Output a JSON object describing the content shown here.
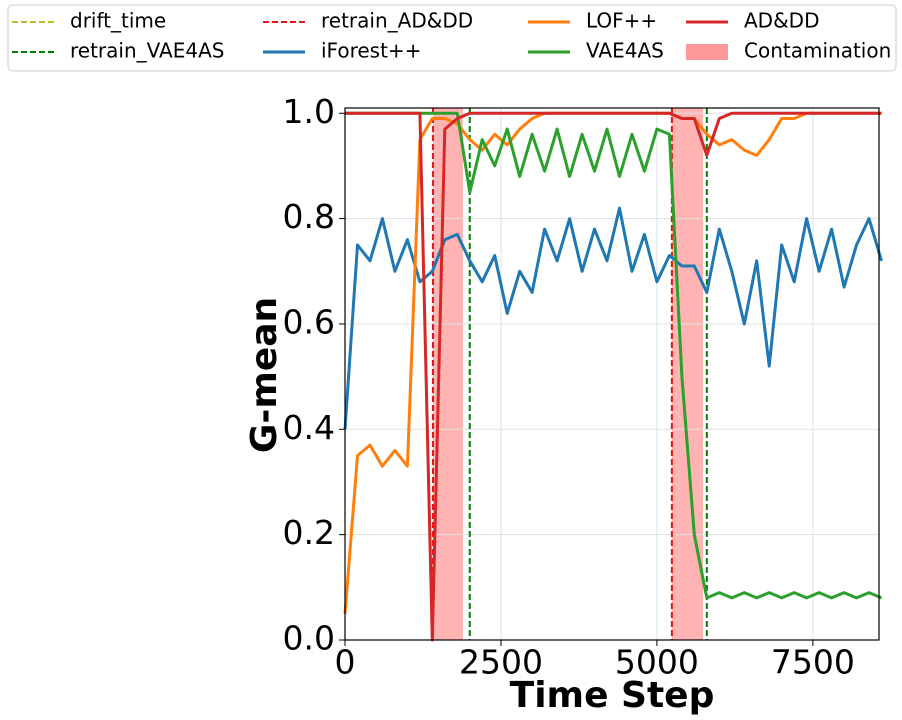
{
  "chart_data": {
    "type": "line",
    "xlabel": "Time Step",
    "ylabel": "G-mean",
    "xlim": [
      0,
      8560
    ],
    "ylim": [
      0,
      1.01
    ],
    "xticks": [
      0,
      2500,
      5000,
      7500
    ],
    "yticks": [
      {
        "value": 0,
        "label": "0.0"
      },
      0.2,
      0.4,
      0.6,
      0.8,
      {
        "value": 1,
        "label": "1.0"
      }
    ],
    "grid": true,
    "x": [
      0,
      200,
      400,
      600,
      800,
      1000,
      1200,
      1400,
      1600,
      1800,
      2000,
      2200,
      2400,
      2600,
      2800,
      3000,
      3200,
      3400,
      3600,
      3800,
      4000,
      4200,
      4400,
      4600,
      4800,
      5000,
      5200,
      5400,
      5600,
      5800,
      6000,
      6200,
      6400,
      6600,
      6800,
      7000,
      7200,
      7400,
      7600,
      7800,
      8000,
      8200,
      8400,
      8600
    ],
    "vlines": [
      {
        "name": "drift_time",
        "color": "#bcbd22",
        "x": [
          1410,
          5240
        ]
      },
      {
        "name": "retrain_VAE4AS",
        "color": "#008000",
        "x": [
          2000,
          5800
        ]
      },
      {
        "name": "retrain_AD&DD",
        "color": "#e8141c",
        "x": [
          1410,
          5240
        ]
      }
    ],
    "series": [
      {
        "name": "iForest++",
        "color": "#1f77b4",
        "values": [
          0.4,
          0.75,
          0.72,
          0.8,
          0.7,
          0.76,
          0.68,
          0.7,
          0.76,
          0.77,
          0.72,
          0.68,
          0.73,
          0.62,
          0.7,
          0.66,
          0.78,
          0.72,
          0.8,
          0.7,
          0.78,
          0.72,
          0.82,
          0.7,
          0.77,
          0.68,
          0.73,
          0.71,
          0.71,
          0.66,
          0.78,
          0.7,
          0.6,
          0.72,
          0.52,
          0.75,
          0.68,
          0.8,
          0.7,
          0.78,
          0.67,
          0.75,
          0.8,
          0.72
        ]
      },
      {
        "name": "LOF++",
        "color": "#ff7f0e",
        "values": [
          0.05,
          0.35,
          0.37,
          0.33,
          0.36,
          0.33,
          0.95,
          0.99,
          0.99,
          0.98,
          0.95,
          0.93,
          0.96,
          0.94,
          0.97,
          0.99,
          1.0,
          1.0,
          1.0,
          1.0,
          1.0,
          1.0,
          1.0,
          1.0,
          1.0,
          1.0,
          1.0,
          0.99,
          0.99,
          0.96,
          0.94,
          0.95,
          0.93,
          0.92,
          0.95,
          0.99,
          0.99,
          1.0,
          1.0,
          1.0,
          1.0,
          1.0,
          1.0,
          1.0
        ]
      },
      {
        "name": "VAE4AS",
        "color": "#2ca02c",
        "values": [
          1.0,
          1.0,
          1.0,
          1.0,
          1.0,
          1.0,
          1.0,
          1.0,
          1.0,
          1.0,
          0.85,
          0.95,
          0.9,
          0.97,
          0.88,
          0.96,
          0.89,
          0.97,
          0.88,
          0.96,
          0.89,
          0.97,
          0.88,
          0.96,
          0.89,
          0.97,
          0.96,
          0.5,
          0.2,
          0.08,
          0.09,
          0.08,
          0.09,
          0.08,
          0.09,
          0.08,
          0.09,
          0.08,
          0.09,
          0.08,
          0.09,
          0.08,
          0.09,
          0.08
        ]
      },
      {
        "name": "AD&DD",
        "color": "#d62728",
        "values": [
          1.0,
          1.0,
          1.0,
          1.0,
          1.0,
          1.0,
          1.0,
          0.0,
          0.97,
          0.99,
          1.0,
          1.0,
          1.0,
          1.0,
          1.0,
          1.0,
          1.0,
          1.0,
          1.0,
          1.0,
          1.0,
          1.0,
          1.0,
          1.0,
          1.0,
          1.0,
          1.0,
          0.99,
          0.99,
          0.92,
          0.99,
          1.0,
          1.0,
          1.0,
          1.0,
          1.0,
          1.0,
          1.0,
          1.0,
          1.0,
          1.0,
          1.0,
          1.0,
          1.0
        ]
      }
    ],
    "spans": [
      {
        "name": "Contamination",
        "color": "#ff9999",
        "ranges": [
          [
            1410,
            1890
          ],
          [
            5240,
            5740
          ]
        ]
      }
    ]
  }
}
